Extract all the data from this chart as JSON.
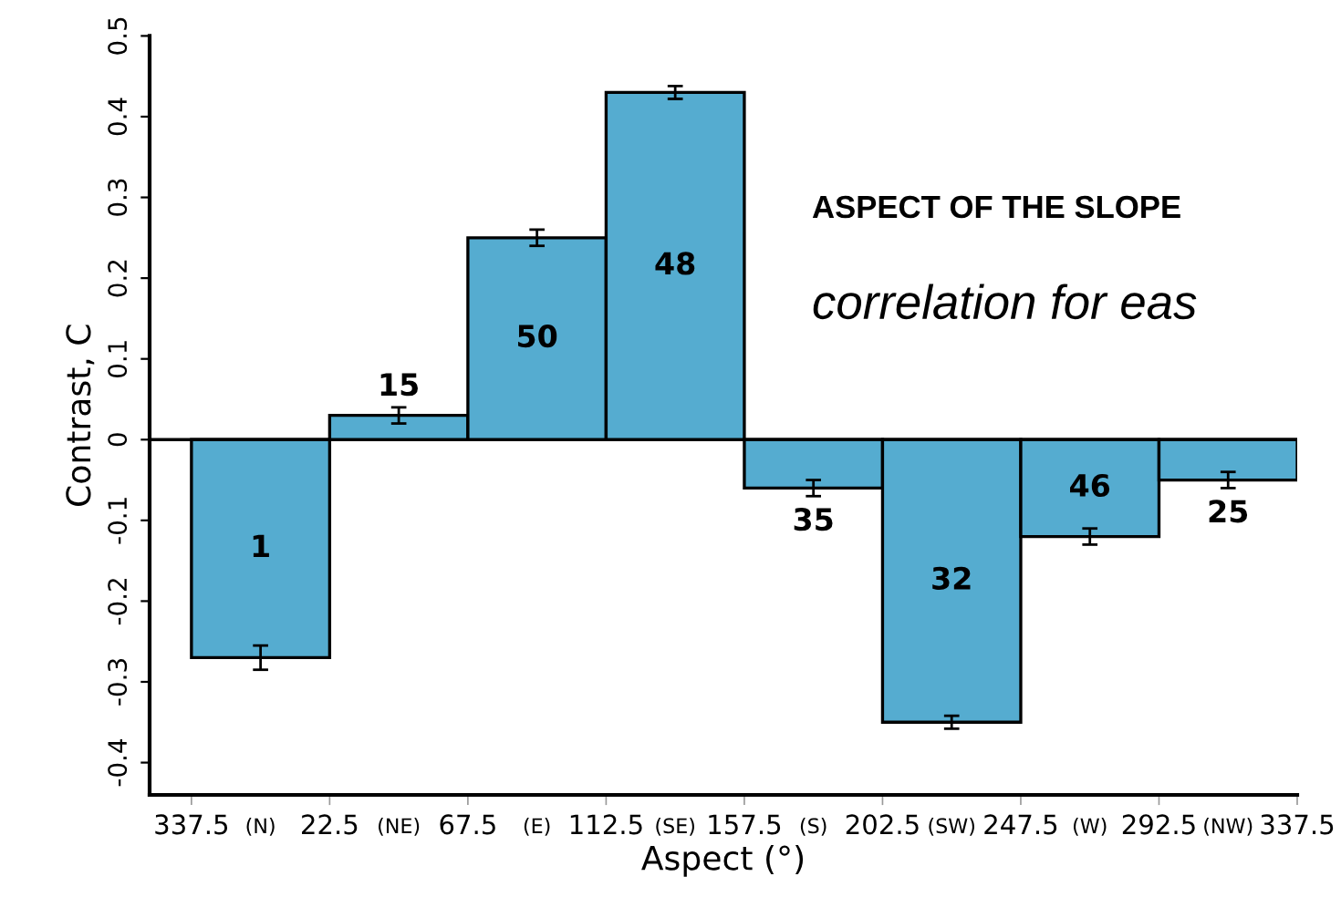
{
  "chart_data": {
    "type": "bar",
    "xlabel": "Aspect (°)",
    "ylabel": "Contrast, C",
    "categories": [
      "(N)",
      "(NE)",
      "(E)",
      "(SE)",
      "(S)",
      "(SW)",
      "(W)",
      "(NW)"
    ],
    "values": [
      -0.27,
      0.03,
      0.25,
      0.43,
      -0.06,
      -0.35,
      -0.12,
      -0.05
    ],
    "errors": [
      0.015,
      0.01,
      0.01,
      0.008,
      0.01,
      0.008,
      0.01,
      0.01
    ],
    "color": "#55acd0",
    "ylim": [
      -0.44,
      0.5
    ],
    "yticks": [
      -0.4,
      -0.3,
      -0.2,
      -0.1,
      0,
      0.1,
      0.2,
      0.3,
      0.4,
      0.5
    ],
    "ref_lines": [
      {
        "axis": "y",
        "value": 0,
        "color": "#000000"
      }
    ],
    "grid": false,
    "annotations": [
      "ASPECT OF THE SLOPE",
      "correlation for eas",
      "1",
      "15",
      "50",
      "48",
      "35",
      "32",
      "46",
      "25",
      "337.5",
      "22.5",
      "67.5",
      "112.5",
      "157.5",
      "202.5",
      "247.5",
      "292.5",
      "337.5"
    ]
  }
}
